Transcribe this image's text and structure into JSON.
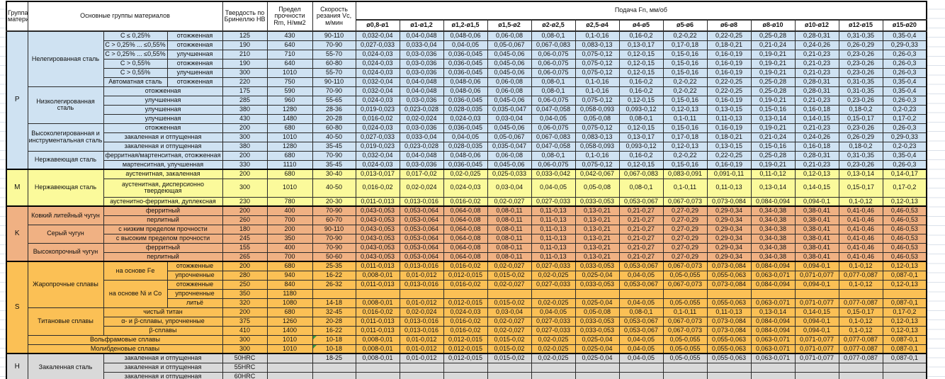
{
  "header": {
    "group": "Группа материалов",
    "materials": "Основные группы материалов",
    "hardness": "Твердость по Бринеллю HB",
    "strength": "Предел прочности Rm, Н/мм2",
    "speed": "Скорость резания Vc, м/мин",
    "feed": "Подача Fn, мм/об",
    "diameters": [
      "ø0,8-ø1",
      "ø1-ø1,2",
      "ø1,2-ø1,5",
      "ø1,5-ø2",
      "ø2-ø2,5",
      "ø2,5-ø4",
      "ø4-ø5",
      "ø5-ø6",
      "ø6-ø8",
      "ø8-ø10",
      "ø10-ø12",
      "ø12-ø15",
      "ø15-ø20"
    ]
  },
  "rows": [
    {
      "sec": "p",
      "group": "P",
      "group_rs": 15,
      "name": {
        "t": "Нелегированная сталь",
        "rs": 6
      },
      "subs": [
        {
          "t": "C ≤ 0,25%"
        },
        {
          "t": "отожженная"
        }
      ],
      "hb": "125",
      "rm": "430",
      "vc": "90-110",
      "feeds": [
        "0,032-0,04",
        "0,04-0,048",
        "0,048-0,06",
        "0,06-0,08",
        "0,08-0,1",
        "0,1-0,16",
        "0,16-0,2",
        "0,2-0,22",
        "0,22-0,25",
        "0,25-0,28",
        "0,28-0,31",
        "0,31-0,35",
        "0,35-0,4"
      ]
    },
    {
      "sec": "p",
      "subs": [
        {
          "t": "C > 0,25% ... ≤0,55%"
        },
        {
          "t": "отожженная"
        }
      ],
      "hb": "190",
      "rm": "640",
      "vc": "70-90",
      "feeds": [
        "0,027-0,033",
        "0,033-0,04",
        "0,04-0,05",
        "0,05-0,067",
        "0,067-0,083",
        "0,083-0,13",
        "0,13-0,17",
        "0,17-0,18",
        "0,18-0,21",
        "0,21-0,24",
        "0,24-0,26",
        "0,26-0,29",
        "0,29-0,33"
      ]
    },
    {
      "sec": "p",
      "subs": [
        {
          "t": "C > 0,25% ... ≤0,55%"
        },
        {
          "t": "улучшенная"
        }
      ],
      "hb": "210",
      "rm": "710",
      "vc": "55-70",
      "feeds": [
        "0,024-0,03",
        "0,03-0,036",
        "0,036-0,045",
        "0,045-0,06",
        "0,06-0,075",
        "0,075-0,12",
        "0,12-0,15",
        "0,15-0,16",
        "0,16-0,19",
        "0,19-0,21",
        "0,21-0,23",
        "0,23-0,26",
        "0,26-0,3"
      ]
    },
    {
      "sec": "p",
      "subs": [
        {
          "t": "C > 0,55%"
        },
        {
          "t": "отожженная"
        }
      ],
      "hb": "190",
      "rm": "640",
      "vc": "60-80",
      "feeds": [
        "0,024-0,03",
        "0,03-0,036",
        "0,036-0,045",
        "0,045-0,06",
        "0,06-0,075",
        "0,075-0,12",
        "0,12-0,15",
        "0,15-0,16",
        "0,16-0,19",
        "0,19-0,21",
        "0,21-0,23",
        "0,23-0,26",
        "0,26-0,3"
      ]
    },
    {
      "sec": "p",
      "subs": [
        {
          "t": "C > 0,55%"
        },
        {
          "t": "улучшенная"
        }
      ],
      "hb": "300",
      "rm": "1010",
      "vc": "55-70",
      "feeds": [
        "0,024-0,03",
        "0,03-0,036",
        "0,036-0,045",
        "0,045-0,06",
        "0,06-0,075",
        "0,075-0,12",
        "0,12-0,15",
        "0,15-0,16",
        "0,16-0,19",
        "0,19-0,21",
        "0,21-0,23",
        "0,23-0,26",
        "0,26-0,3"
      ]
    },
    {
      "sec": "p",
      "subs": [
        {
          "t": "Автоматная сталь"
        },
        {
          "t": "отожженная"
        }
      ],
      "hb": "220",
      "rm": "750",
      "vc": "90-110",
      "feeds": [
        "0,032-0,04",
        "0,04-0,048",
        "0,048-0,06",
        "0,06-0,08",
        "0,08-0,1",
        "0,1-0,16",
        "0,16-0,2",
        "0,2-0,22",
        "0,22-0,25",
        "0,25-0,28",
        "0,28-0,31",
        "0,31-0,35",
        "0,35-0,4"
      ]
    },
    {
      "sec": "p",
      "name": {
        "t": "Низколегированная сталь",
        "rs": 4
      },
      "subs": [
        {
          "t": "отожженная",
          "cs": 2
        }
      ],
      "hb": "175",
      "rm": "590",
      "vc": "70-90",
      "feeds": [
        "0,032-0,04",
        "0,04-0,048",
        "0,048-0,06",
        "0,06-0,08",
        "0,08-0,1",
        "0,1-0,16",
        "0,16-0,2",
        "0,2-0,22",
        "0,22-0,25",
        "0,25-0,28",
        "0,28-0,31",
        "0,31-0,35",
        "0,35-0,4"
      ]
    },
    {
      "sec": "p",
      "subs": [
        {
          "t": "улучшенная",
          "cs": 2
        }
      ],
      "hb": "285",
      "rm": "960",
      "vc": "55-65",
      "feeds": [
        "0,024-0,03",
        "0,03-0,036",
        "0,036-0,045",
        "0,045-0,06",
        "0,06-0,075",
        "0,075-0,12",
        "0,12-0,15",
        "0,15-0,16",
        "0,16-0,19",
        "0,19-0,21",
        "0,21-0,23",
        "0,23-0,26",
        "0,26-0,3"
      ]
    },
    {
      "sec": "p",
      "subs": [
        {
          "t": "улучшенная",
          "cs": 2
        }
      ],
      "hb": "380",
      "rm": "1280",
      "vc": "28-36",
      "feeds": [
        "0,019-0,023",
        "0,023-0,028",
        "0,028-0,035",
        "0,035-0,047",
        "0,047-0,058",
        "0,058-0,093",
        "0,093-0,12",
        "0,12-0,13",
        "0,13-0,15",
        "0,15-0,16",
        "0,16-0,18",
        "0,18-0,2",
        "0,2-0,23"
      ]
    },
    {
      "sec": "p",
      "subs": [
        {
          "t": "улучшенная",
          "cs": 2
        }
      ],
      "hb": "430",
      "rm": "1480",
      "vc": "20-28",
      "feeds": [
        "0,016-0,02",
        "0,02-0,024",
        "0,024-0,03",
        "0,03-0,04",
        "0,04-0,05",
        "0,05-0,08",
        "0,08-0,1",
        "0,1-0,11",
        "0,11-0,13",
        "0,13-0,14",
        "0,14-0,15",
        "0,15-0,17",
        "0,17-0,2"
      ]
    },
    {
      "sec": "p",
      "name": {
        "t": "Высоколегированная и инструментальная сталь",
        "rs": 3
      },
      "subs": [
        {
          "t": "отожженная",
          "cs": 2
        }
      ],
      "hb": "200",
      "rm": "680",
      "vc": "60-80",
      "feeds": [
        "0,024-0,03",
        "0,03-0,036",
        "0,036-0,045",
        "0,045-0,06",
        "0,06-0,075",
        "0,075-0,12",
        "0,12-0,15",
        "0,15-0,16",
        "0,16-0,19",
        "0,19-0,21",
        "0,21-0,23",
        "0,23-0,26",
        "0,26-0,3"
      ]
    },
    {
      "sec": "p",
      "subs": [
        {
          "t": "закаленная и отпущенная",
          "cs": 2
        }
      ],
      "hb": "300",
      "rm": "1010",
      "vc": "40-50",
      "feeds": [
        "0,027-0,033",
        "0,033-0,04",
        "0,04-0,05",
        "0,05-0,067",
        "0,067-0,083",
        "0,083-0,13",
        "0,13-0,17",
        "0,17-0,18",
        "0,18-0,21",
        "0,21-0,24",
        "0,24-0,26",
        "0,26-0,29",
        "0,29-0,33"
      ]
    },
    {
      "sec": "p",
      "subs": [
        {
          "t": "закаленная и отпущенная",
          "cs": 2
        }
      ],
      "hb": "380",
      "rm": "1280",
      "vc": "35-45",
      "feeds": [
        "0,019-0,023",
        "0,023-0,028",
        "0,028-0,035",
        "0,035-0,047",
        "0,047-0,058",
        "0,058-0,093",
        "0,093-0,12",
        "0,12-0,13",
        "0,13-0,15",
        "0,15-0,16",
        "0,16-0,18",
        "0,18-0,2",
        "0,2-0,23"
      ]
    },
    {
      "sec": "p",
      "name": {
        "t": "Нержавеющая сталь",
        "rs": 2
      },
      "subs": [
        {
          "t": "ферритная/мартенситная, отожженная",
          "cs": 2
        }
      ],
      "hb": "200",
      "rm": "680",
      "vc": "70-90",
      "feeds": [
        "0,032-0,04",
        "0,04-0,048",
        "0,048-0,06",
        "0,06-0,08",
        "0,08-0,1",
        "0,1-0,16",
        "0,16-0,2",
        "0,2-0,22",
        "0,22-0,25",
        "0,25-0,28",
        "0,28-0,31",
        "0,31-0,35",
        "0,35-0,4"
      ]
    },
    {
      "sec": "p",
      "subs": [
        {
          "t": "мартенситная, улучшенная",
          "cs": 2
        }
      ],
      "hb": "330",
      "rm": "1110",
      "vc": "35-45",
      "feeds": [
        "0,024-0,03",
        "0,03-0,036",
        "0,036-0,045",
        "0,045-0,06",
        "0,06-0,075",
        "0,075-0,12",
        "0,12-0,15",
        "0,15-0,16",
        "0,16-0,19",
        "0,19-0,21",
        "0,21-0,23",
        "0,23-0,26",
        "0,26-0,3"
      ]
    },
    {
      "sec": "m",
      "group": "M",
      "group_rs": 3,
      "name": {
        "t": "Нержавеющая сталь",
        "rs": 3
      },
      "subs": [
        {
          "t": "аустенитная, закаленная",
          "cs": 2
        }
      ],
      "hb": "200",
      "rm": "680",
      "vc": "30-40",
      "feeds": [
        "0,013-0,017",
        "0,017-0,02",
        "0,02-0,025",
        "0,025-0,033",
        "0,033-0,042",
        "0,042-0,067",
        "0,067-0,083",
        "0,083-0,091",
        "0,091-0,11",
        "0,11-0,12",
        "0,12-0,13",
        "0,13-0,14",
        "0,14-0,17"
      ]
    },
    {
      "sec": "m",
      "tall": true,
      "subs": [
        {
          "t": "аустенитная, дисперсионно твердеющая",
          "cs": 2
        }
      ],
      "hb": "300",
      "rm": "1010",
      "vc": "40-50",
      "feeds": [
        "0,016-0,02",
        "0,02-0,024",
        "0,024-0,03",
        "0,03-0,04",
        "0,04-0,05",
        "0,05-0,08",
        "0,08-0,1",
        "0,1-0,11",
        "0,11-0,13",
        "0,13-0,14",
        "0,14-0,15",
        "0,15-0,17",
        "0,17-0,2"
      ]
    },
    {
      "sec": "m",
      "subs": [
        {
          "t": "аустенитно-ферритная, дуплексная",
          "cs": 2
        }
      ],
      "hb": "230",
      "rm": "780",
      "vc": "20-30",
      "feeds": [
        "0,011-0,013",
        "0,013-0,016",
        "0,016-0,02",
        "0,02-0,027",
        "0,027-0,033",
        "0,033-0,053",
        "0,053-0,067",
        "0,067-0,073",
        "0,073-0,084",
        "0,084-0,094",
        "0,094-0,1",
        "0,1-0,12",
        "0,12-0,13"
      ]
    },
    {
      "sec": "k",
      "group": "K",
      "group_rs": 6,
      "name": {
        "t": "Ковкий литейный чугун",
        "rs": 2
      },
      "subs": [
        {
          "t": "ферритный",
          "cs": 2
        }
      ],
      "hb": "200",
      "rm": "400",
      "vc": "70-90",
      "feeds": [
        "0,043-0,053",
        "0,053-0,064",
        "0,064-0,08",
        "0,08-0,11",
        "0,11-0,13",
        "0,13-0,21",
        "0,21-0,27",
        "0,27-0,29",
        "0,29-0,34",
        "0,34-0,38",
        "0,38-0,41",
        "0,41-0,46",
        "0,46-0,53"
      ]
    },
    {
      "sec": "k",
      "subs": [
        {
          "t": "перлитный",
          "cs": 2
        }
      ],
      "hb": "260",
      "rm": "700",
      "vc": "60-70",
      "feeds": [
        "0,043-0,053",
        "0,053-0,064",
        "0,064-0,08",
        "0,08-0,11",
        "0,11-0,13",
        "0,13-0,21",
        "0,21-0,27",
        "0,27-0,29",
        "0,29-0,34",
        "0,34-0,38",
        "0,38-0,41",
        "0,41-0,46",
        "0,46-0,53"
      ]
    },
    {
      "sec": "k",
      "name": {
        "t": "Серый чугун",
        "rs": 2
      },
      "subs": [
        {
          "t": "с низким пределом прочности",
          "cs": 2
        }
      ],
      "hb": "180",
      "rm": "200",
      "vc": "90-110",
      "feeds": [
        "0,043-0,053",
        "0,053-0,064",
        "0,064-0,08",
        "0,08-0,11",
        "0,11-0,13",
        "0,13-0,21",
        "0,21-0,27",
        "0,27-0,29",
        "0,29-0,34",
        "0,34-0,38",
        "0,38-0,41",
        "0,41-0,46",
        "0,46-0,53"
      ]
    },
    {
      "sec": "k",
      "subs": [
        {
          "t": "с высоким пределом прочности",
          "cs": 2
        }
      ],
      "hb": "245",
      "rm": "350",
      "vc": "70-90",
      "feeds": [
        "0,043-0,053",
        "0,053-0,064",
        "0,064-0,08",
        "0,08-0,11",
        "0,11-0,13",
        "0,13-0,21",
        "0,21-0,27",
        "0,27-0,29",
        "0,29-0,34",
        "0,34-0,38",
        "0,38-0,41",
        "0,41-0,46",
        "0,46-0,53"
      ]
    },
    {
      "sec": "k",
      "name": {
        "t": "Высокопрочный чугун",
        "rs": 2
      },
      "subs": [
        {
          "t": "ферритный",
          "cs": 2
        }
      ],
      "hb": "155",
      "rm": "400",
      "vc": "70-90",
      "feeds": [
        "0,043-0,053",
        "0,053-0,064",
        "0,064-0,08",
        "0,08-0,11",
        "0,11-0,13",
        "0,13-0,21",
        "0,21-0,27",
        "0,27-0,29",
        "0,29-0,34",
        "0,34-0,38",
        "0,38-0,41",
        "0,41-0,46",
        "0,46-0,53"
      ]
    },
    {
      "sec": "k",
      "subs": [
        {
          "t": "перлитный",
          "cs": 2
        }
      ],
      "hb": "265",
      "rm": "700",
      "vc": "50-60",
      "feeds": [
        "0,043-0,053",
        "0,053-0,064",
        "0,064-0,08",
        "0,08-0,11",
        "0,11-0,13",
        "0,13-0,21",
        "0,21-0,27",
        "0,27-0,29",
        "0,29-0,34",
        "0,34-0,38",
        "0,38-0,41",
        "0,41-0,46",
        "0,46-0,53"
      ]
    },
    {
      "sec": "s",
      "group": "S",
      "group_rs": 10,
      "name": {
        "t": "Жаропрочные сплавы",
        "rs": 5
      },
      "subs": [
        {
          "t": "на основе Fe",
          "rs": 2
        },
        {
          "t": "отожженные"
        }
      ],
      "hb": "200",
      "rm": "680",
      "vc": "25-35",
      "feeds": [
        "0,011-0,013",
        "0,013-0,016",
        "0,016-0,02",
        "0,02-0,027",
        "0,027-0,033",
        "0,033-0,053",
        "0,053-0,067",
        "0,067-0,073",
        "0,073-0,084",
        "0,084-0,094",
        "0,094-0,1",
        "0,1-0,12",
        "0,12-0,13"
      ]
    },
    {
      "sec": "s",
      "subs": [
        {
          "t": "упрочненные"
        }
      ],
      "hb": "280",
      "rm": "940",
      "vc": "16-22",
      "feeds": [
        "0,008-0,01",
        "0,01-0,012",
        "0,012-0,015",
        "0,015-0,02",
        "0,02-0,025",
        "0,025-0,04",
        "0,04-0,05",
        "0,05-0,055",
        "0,055-0,063",
        "0,063-0,071",
        "0,071-0,077",
        "0,077-0,087",
        "0,087-0,1"
      ]
    },
    {
      "sec": "s",
      "subs": [
        {
          "t": "на основе Ni и Co",
          "rs": 3
        },
        {
          "t": "отожженные"
        }
      ],
      "hb": "250",
      "rm": "840",
      "vc": "26-32",
      "feeds": [
        "0,011-0,013",
        "0,013-0,016",
        "0,016-0,02",
        "0,02-0,027",
        "0,027-0,033",
        "0,033-0,053",
        "0,053-0,067",
        "0,067-0,073",
        "0,073-0,084",
        "0,084-0,094",
        "0,094-0,1",
        "0,1-0,12",
        "0,12-0,13"
      ]
    },
    {
      "sec": "s",
      "subs": [
        {
          "t": "упрочненные"
        }
      ],
      "hb": "350",
      "rm": "1180",
      "vc": "",
      "feeds": [
        "",
        "",
        "",
        "",
        "",
        "",
        "",
        "",
        "",
        "",
        "",
        "",
        ""
      ]
    },
    {
      "sec": "s",
      "subs": [
        {
          "t": "литьё"
        }
      ],
      "hb": "320",
      "rm": "1080",
      "vc": "14-18",
      "feeds": [
        "0,008-0,01",
        "0,01-0,012",
        "0,012-0,015",
        "0,015-0,02",
        "0,02-0,025",
        "0,025-0,04",
        "0,04-0,05",
        "0,05-0,055",
        "0,055-0,063",
        "0,063-0,071",
        "0,071-0,077",
        "0,077-0,087",
        "0,087-0,1"
      ]
    },
    {
      "sec": "s",
      "name": {
        "t": "Титановые сплавы",
        "rs": 3
      },
      "subs": [
        {
          "t": "чистый титан",
          "cs": 2
        }
      ],
      "hb": "200",
      "rm": "680",
      "vc": "32-45",
      "feeds": [
        "0,016-0,02",
        "0,02-0,024",
        "0,024-0,03",
        "0,03-0,04",
        "0,04-0,05",
        "0,05-0,08",
        "0,08-0,1",
        "0,1-0,11",
        "0,11-0,13",
        "0,13-0,14",
        "0,14-0,15",
        "0,15-0,17",
        "0,17-0,2"
      ]
    },
    {
      "sec": "s",
      "subs": [
        {
          "t": "α- и β-сплавы, упрочненные",
          "cs": 2
        }
      ],
      "hb": "375",
      "rm": "1260",
      "vc": "20-28",
      "feeds": [
        "0,011-0,013",
        "0,013-0,016",
        "0,016-0,02",
        "0,02-0,027",
        "0,027-0,033",
        "0,033-0,053",
        "0,053-0,067",
        "0,067-0,073",
        "0,073-0,084",
        "0,084-0,094",
        "0,094-0,1",
        "0,1-0,12",
        "0,12-0,13"
      ]
    },
    {
      "sec": "s",
      "subs": [
        {
          "t": "β-сплавы",
          "cs": 2
        }
      ],
      "hb": "410",
      "rm": "1400",
      "vc": "16-22",
      "feeds": [
        "0,011-0,013",
        "0,013-0,016",
        "0,016-0,02",
        "0,02-0,027",
        "0,027-0,033",
        "0,033-0,053",
        "0,053-0,067",
        "0,067-0,073",
        "0,073-0,084",
        "0,084-0,094",
        "0,094-0,1",
        "0,1-0,12",
        "0,12-0,13"
      ]
    },
    {
      "sec": "s",
      "name": {
        "t": "Вольфрамовые сплавы",
        "cs": 3
      },
      "subs": [],
      "hb": "300",
      "rm": "1010",
      "vc": "10-18",
      "vc_note": true,
      "feeds": [
        "0,008-0,01",
        "0,01-0,012",
        "0,012-0,015",
        "0,015-0,02",
        "0,02-0,025",
        "0,025-0,04",
        "0,04-0,05",
        "0,05-0,055",
        "0,055-0,063",
        "0,063-0,071",
        "0,071-0,077",
        "0,077-0,087",
        "0,087-0,1"
      ]
    },
    {
      "sec": "s",
      "name": {
        "t": "Молибденовые сплавы",
        "cs": 3
      },
      "subs": [],
      "hb": "300",
      "rm": "1010",
      "vc": "10-18",
      "vc_note": true,
      "feeds": [
        "0,008-0,01",
        "0,01-0,012",
        "0,012-0,015",
        "0,015-0,02",
        "0,02-0,025",
        "0,025-0,04",
        "0,04-0,05",
        "0,05-0,055",
        "0,055-0,063",
        "0,063-0,071",
        "0,071-0,077",
        "0,077-0,087",
        "0,087-0,1"
      ]
    },
    {
      "sec": "h",
      "group": "H",
      "group_rs": 3,
      "name": {
        "t": "Закаленная сталь",
        "rs": 3
      },
      "subs": [
        {
          "t": "закаленная и отпущенная",
          "cs": 2
        }
      ],
      "hb": "50HRC",
      "rm": "",
      "vc": "18-25",
      "feeds": [
        "0,008-0,01",
        "0,01-0,012",
        "0,012-0,015",
        "0,015-0,02",
        "0,02-0,025",
        "0,025-0,04",
        "0,04-0,05",
        "0,05-0,055",
        "0,055-0,063",
        "0,063-0,071",
        "0,071-0,077",
        "0,077-0,087",
        "0,087-0,1"
      ]
    },
    {
      "sec": "h",
      "subs": [
        {
          "t": "закаленная и отпущенная",
          "cs": 2
        }
      ],
      "hb": "55HRC",
      "rm": "",
      "vc": "",
      "feeds": [
        "",
        "",
        "",
        "",
        "",
        "",
        "",
        "",
        "",
        "",
        "",
        "",
        ""
      ]
    },
    {
      "sec": "h",
      "subs": [
        {
          "t": "закаленная и отпущенная",
          "cs": 2
        }
      ],
      "hb": "60HRC",
      "rm": "",
      "vc": "",
      "feeds": [
        "",
        "",
        "",
        "",
        "",
        "",
        "",
        "",
        "",
        "",
        "",
        "",
        ""
      ]
    }
  ],
  "colors": {
    "section_p": "#cfe2f2",
    "section_m": "#fbfa9b",
    "section_k": "#f0b183",
    "section_s": "#fbc055",
    "section_h": "#d9d9d9",
    "note_corner": "#3c9a3c"
  }
}
